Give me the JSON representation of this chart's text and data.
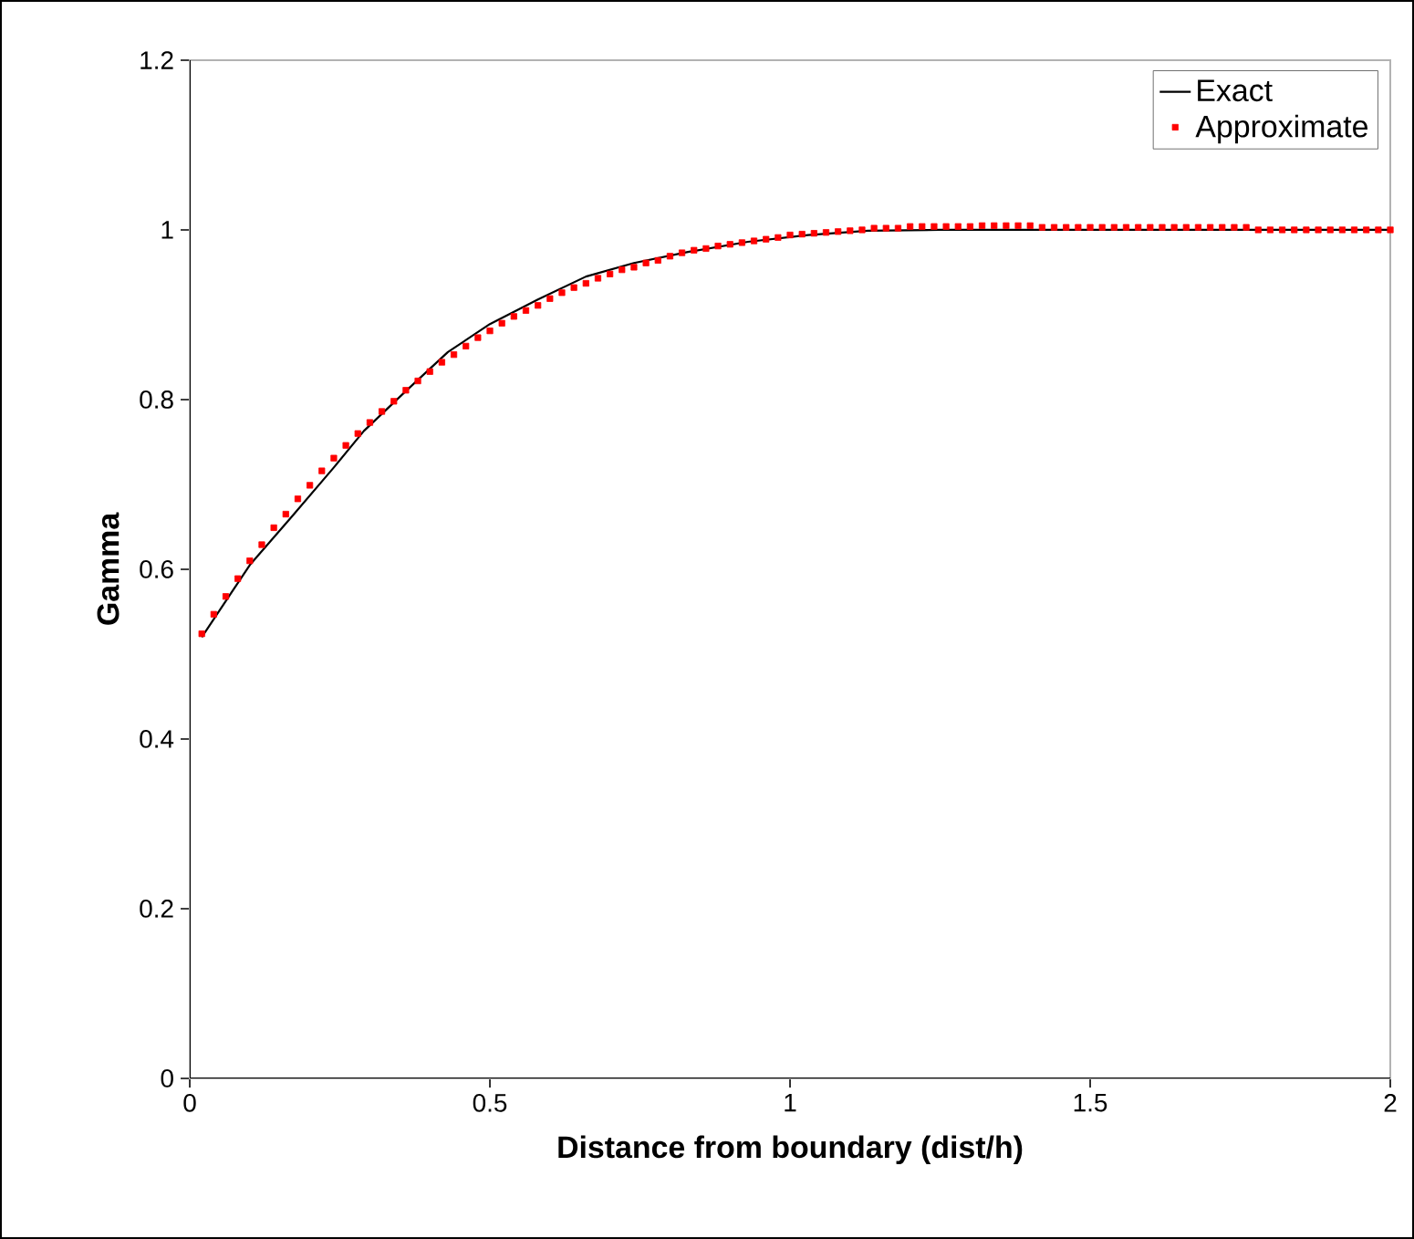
{
  "chart_data": {
    "type": "line",
    "xlabel": "Distance from boundary (dist/h)",
    "ylabel": "Gamma",
    "xlim": [
      0,
      2
    ],
    "ylim": [
      0,
      1.2
    ],
    "xticks": [
      0,
      0.5,
      1,
      1.5,
      2
    ],
    "yticks": [
      0,
      0.2,
      0.4,
      0.6,
      0.8,
      1,
      1.2
    ],
    "grid": false,
    "legend": "top right",
    "series": [
      {
        "name": "Exact",
        "color": "#000000",
        "marker": "none",
        "line_style": "solid",
        "x": [
          0.02,
          0.1,
          0.17,
          0.24,
          0.29,
          0.36,
          0.43,
          0.5,
          0.58,
          0.66,
          0.74,
          0.83,
          0.93,
          1.03,
          1.13,
          1.25,
          1.5,
          2.0
        ],
        "values": [
          0.52,
          0.605,
          0.662,
          0.72,
          0.763,
          0.81,
          0.856,
          0.889,
          0.918,
          0.945,
          0.961,
          0.974,
          0.986,
          0.994,
          0.999,
          1.0,
          1.0,
          1.0
        ]
      },
      {
        "name": "Approximate",
        "type": "scatter",
        "color": "#ff0000",
        "marker": "square",
        "x": [
          0.02,
          0.04,
          0.06,
          0.08,
          0.1,
          0.12,
          0.14,
          0.16,
          0.18,
          0.2,
          0.22,
          0.24,
          0.26,
          0.28,
          0.3,
          0.32,
          0.34,
          0.36,
          0.38,
          0.4,
          0.42,
          0.44,
          0.46,
          0.48,
          0.5,
          0.52,
          0.54,
          0.56,
          0.58,
          0.6,
          0.62,
          0.64,
          0.66,
          0.68,
          0.7,
          0.72,
          0.74,
          0.76,
          0.78,
          0.8,
          0.82,
          0.84,
          0.86,
          0.88,
          0.9,
          0.92,
          0.94,
          0.96,
          0.98,
          1.0,
          1.02,
          1.04,
          1.06,
          1.08,
          1.1,
          1.12,
          1.14,
          1.16,
          1.18,
          1.2,
          1.22,
          1.24,
          1.26,
          1.28,
          1.3,
          1.32,
          1.34,
          1.36,
          1.38,
          1.4,
          1.42,
          1.44,
          1.46,
          1.48,
          1.5,
          1.52,
          1.54,
          1.56,
          1.58,
          1.6,
          1.62,
          1.64,
          1.66,
          1.68,
          1.7,
          1.72,
          1.74,
          1.76,
          1.78,
          1.8,
          1.82,
          1.84,
          1.86,
          1.88,
          1.9,
          1.92,
          1.94,
          1.96,
          1.98,
          2.0
        ],
        "values": [
          0.524,
          0.547,
          0.568,
          0.589,
          0.61,
          0.629,
          0.649,
          0.665,
          0.683,
          0.699,
          0.716,
          0.731,
          0.746,
          0.76,
          0.773,
          0.786,
          0.798,
          0.811,
          0.822,
          0.833,
          0.844,
          0.853,
          0.863,
          0.873,
          0.881,
          0.89,
          0.898,
          0.905,
          0.911,
          0.919,
          0.926,
          0.932,
          0.937,
          0.943,
          0.948,
          0.953,
          0.956,
          0.961,
          0.964,
          0.969,
          0.973,
          0.976,
          0.978,
          0.981,
          0.983,
          0.985,
          0.987,
          0.989,
          0.991,
          0.994,
          0.995,
          0.996,
          0.997,
          0.998,
          0.999,
          1.0,
          1.002,
          1.002,
          1.002,
          1.004,
          1.004,
          1.004,
          1.004,
          1.004,
          1.004,
          1.005,
          1.005,
          1.005,
          1.005,
          1.005,
          1.003,
          1.003,
          1.003,
          1.003,
          1.003,
          1.003,
          1.003,
          1.003,
          1.003,
          1.003,
          1.003,
          1.003,
          1.003,
          1.003,
          1.003,
          1.003,
          1.003,
          1.003,
          1.0,
          1.0,
          1.0,
          1.0,
          1.0,
          1.0,
          1.0,
          1.0,
          1.0,
          1.0,
          1.0,
          1.0
        ]
      }
    ]
  }
}
